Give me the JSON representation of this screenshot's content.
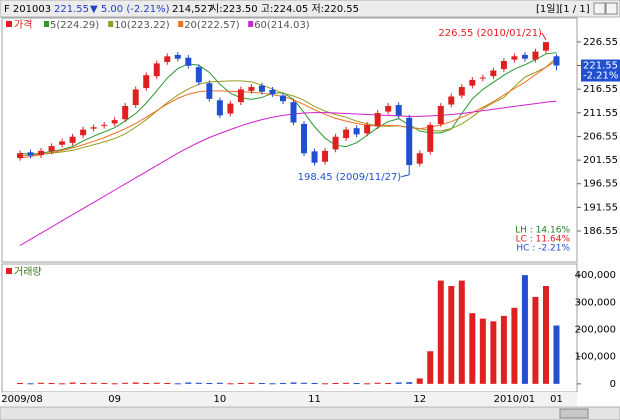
{
  "header": {
    "symbol": "F 201003",
    "price": "221.55",
    "change": "▼ 5.00 (-2.21%)",
    "volume": "214,527",
    "ohl": "시:223.50 고:224.05 저:220.55",
    "period": "[1일][1 / 1]"
  },
  "chart_data": [
    {
      "type": "candlestick",
      "name": "가격",
      "color": "#e02020",
      "up_color": "#e02020",
      "down_color": "#2050d0",
      "categories": [
        "2009/08",
        null,
        null,
        null,
        null,
        null,
        null,
        null,
        null,
        "09",
        null,
        null,
        null,
        null,
        null,
        null,
        null,
        null,
        null,
        "10",
        null,
        null,
        null,
        null,
        null,
        null,
        null,
        null,
        "11",
        null,
        null,
        null,
        null,
        null,
        null,
        null,
        null,
        null,
        "12",
        null,
        null,
        null,
        null,
        null,
        null,
        null,
        null,
        "2010/01",
        null,
        null,
        null,
        "01"
      ],
      "open": [
        202.0,
        203.2,
        202.6,
        203.4,
        204.8,
        205.2,
        206.8,
        208.2,
        208.8,
        209.3,
        210.2,
        213.2,
        216.8,
        219.3,
        222.3,
        223.8,
        223.2,
        221.2,
        217.8,
        214.2,
        211.4,
        213.8,
        216.2,
        217.3,
        216.4,
        215.2,
        213.8,
        209.2,
        203.4,
        201.2,
        203.8,
        206.2,
        208.3,
        207.2,
        208.7,
        211.8,
        213.2,
        210.5,
        200.8,
        203.3,
        209.2,
        213.3,
        215.2,
        217.3,
        218.8,
        219.3,
        220.8,
        222.8,
        223.8,
        222.8,
        224.7,
        223.5
      ],
      "high": [
        203.6,
        203.8,
        204.1,
        205.1,
        206.1,
        207.1,
        208.6,
        209.1,
        209.6,
        210.6,
        213.6,
        217.1,
        220.1,
        222.6,
        224.1,
        224.4,
        223.8,
        221.8,
        218.4,
        214.8,
        214.1,
        217.1,
        217.6,
        217.9,
        217.0,
        215.8,
        214.4,
        209.8,
        204.0,
        204.1,
        207.1,
        208.6,
        208.9,
        209.6,
        212.1,
        213.6,
        213.8,
        211.1,
        203.6,
        209.6,
        213.6,
        215.6,
        217.6,
        219.1,
        219.6,
        221.1,
        223.1,
        224.1,
        224.4,
        225.1,
        226.55,
        224.05
      ],
      "low": [
        201.4,
        201.9,
        202.0,
        202.8,
        204.2,
        204.6,
        206.2,
        207.6,
        208.2,
        208.7,
        209.6,
        212.6,
        216.2,
        218.7,
        221.7,
        222.4,
        220.9,
        217.4,
        213.9,
        210.4,
        210.8,
        213.2,
        215.6,
        215.4,
        214.9,
        213.4,
        208.9,
        202.4,
        200.4,
        200.6,
        203.2,
        205.6,
        206.4,
        206.6,
        208.1,
        211.2,
        210.4,
        198.45,
        200.2,
        202.7,
        208.6,
        212.7,
        214.6,
        216.7,
        218.2,
        218.7,
        220.2,
        222.2,
        222.4,
        222.2,
        224.1,
        220.55
      ],
      "close": [
        203.0,
        202.5,
        203.5,
        204.5,
        205.5,
        206.5,
        208.0,
        208.5,
        209.0,
        210.0,
        213.0,
        216.5,
        219.5,
        222.0,
        223.5,
        223.0,
        221.5,
        218.0,
        214.5,
        211.0,
        213.5,
        216.5,
        217.0,
        216.0,
        215.5,
        214.0,
        209.5,
        203.0,
        201.0,
        203.5,
        206.5,
        208.0,
        207.0,
        209.0,
        211.5,
        213.0,
        211.0,
        200.5,
        203.0,
        209.0,
        213.0,
        215.0,
        217.0,
        218.5,
        219.0,
        220.5,
        222.5,
        223.5,
        223.0,
        224.5,
        226.5,
        221.55
      ],
      "series": [
        {
          "name": "5(224.29)",
          "color": "#2a9a2a",
          "values": [
            203,
            202.8,
            203,
            203.4,
            203.8,
            204.4,
            205.6,
            206.6,
            207.5,
            208.4,
            209.8,
            211.4,
            213.6,
            216.2,
            218.9,
            220.9,
            221.9,
            221.6,
            220.1,
            217.6,
            215.7,
            214.7,
            214.4,
            214.8,
            215.7,
            215.8,
            214.4,
            211.6,
            208.6,
            206.2,
            204.7,
            204.4,
            205.2,
            206.8,
            208.4,
            209.7,
            210.3,
            209.0,
            207.7,
            207.3,
            207.3,
            208.1,
            211.4,
            214.5,
            216.5,
            218.0,
            219.5,
            220.8,
            221.7,
            222.8,
            224.0,
            224.29
          ]
        },
        {
          "name": "10(223.22)",
          "color": "#9a9a20",
          "values": [
            202.5,
            202.6,
            202.8,
            203.0,
            203.3,
            203.6,
            204.2,
            204.8,
            205.4,
            206.1,
            207.1,
            208.5,
            210.1,
            211.9,
            213.7,
            215.3,
            216.6,
            217.6,
            218.1,
            218.2,
            218.3,
            218.3,
            218.1,
            217.4,
            216.6,
            215.7,
            215.1,
            214.2,
            212.9,
            211.9,
            211.2,
            210.6,
            209.8,
            209.2,
            208.8,
            208.7,
            208.8,
            208.5,
            208.2,
            207.8,
            207.7,
            208.2,
            209.2,
            210.7,
            212.4,
            213.7,
            214.8,
            217.1,
            219.1,
            220.1,
            221.2,
            223.22
          ]
        },
        {
          "name": "20(222.57)",
          "color": "#f07020",
          "values": [
            202,
            202.3,
            202.7,
            203.1,
            203.6,
            204.1,
            204.8,
            205.5,
            206.3,
            207.2,
            208.2,
            209.3,
            210.6,
            212.0,
            213.4,
            214.6,
            215.5,
            216.0,
            216.2,
            216.2,
            216.1,
            216.0,
            215.9,
            215.7,
            215.4,
            215.0,
            214.3,
            213.3,
            212.2,
            211.2,
            210.4,
            209.8,
            209.3,
            208.9,
            208.8,
            208.9,
            208.8,
            208.4,
            208.2,
            208.5,
            209.0,
            209.7,
            210.6,
            211.6,
            212.7,
            213.9,
            215.3,
            216.7,
            218.0,
            219.6,
            221.2,
            222.57
          ]
        },
        {
          "name": "60(214.03)",
          "color": "#d020d0",
          "values": [
            183.5,
            184.8,
            186.1,
            187.4,
            188.7,
            190.0,
            191.3,
            192.6,
            193.9,
            195.2,
            196.5,
            197.8,
            199.1,
            200.4,
            201.7,
            203.0,
            204.2,
            205.3,
            206.3,
            207.2,
            208.0,
            208.8,
            209.5,
            210.1,
            210.6,
            211.0,
            211.3,
            211.5,
            211.6,
            211.6,
            211.5,
            211.4,
            211.3,
            211.2,
            211.1,
            211.0,
            210.9,
            210.8,
            210.8,
            210.9,
            211.0,
            211.2,
            211.4,
            211.7,
            212.0,
            212.3,
            212.6,
            212.9,
            213.2,
            213.5,
            213.8,
            214.03
          ]
        }
      ],
      "ylim": [
        180,
        231.6
      ],
      "yticks": [
        186.55,
        191.55,
        196.55,
        201.55,
        206.55,
        211.55,
        216.55,
        221.55,
        226.55
      ],
      "current_change": "-2.21%",
      "annotations": [
        "226.55 (2010/01/21)",
        "198.45 (2009/11/27)"
      ],
      "stats": [
        "LH : 14.16%",
        "LC : 11.64%",
        "HC : -2.21%"
      ]
    },
    {
      "type": "bar",
      "name": "거래량",
      "color": "#e02020",
      "up_color": "#e02020",
      "down_color": "#2050d0",
      "values": [
        3000,
        2000,
        4000,
        3000,
        2000,
        5000,
        3000,
        4000,
        3000,
        2000,
        4000,
        5000,
        3000,
        4000,
        3000,
        2000,
        5000,
        4000,
        3000,
        4000,
        2000,
        3000,
        4000,
        3000,
        2000,
        3000,
        5000,
        4000,
        3000,
        2000,
        3000,
        4000,
        3000,
        2000,
        4000,
        3000,
        5000,
        6000,
        20000,
        120000,
        380000,
        360000,
        380000,
        260000,
        240000,
        230000,
        250000,
        280000,
        400000,
        320000,
        360000,
        214527
      ],
      "ylim": [
        -30000,
        441000
      ],
      "yticks": [
        0,
        {
          "value": 100000,
          "label": "100,000"
        },
        {
          "value": 200000,
          "label": "200,000"
        },
        {
          "value": 300000,
          "label": "300,000"
        },
        {
          "value": 400000,
          "label": "400,000"
        }
      ]
    }
  ]
}
